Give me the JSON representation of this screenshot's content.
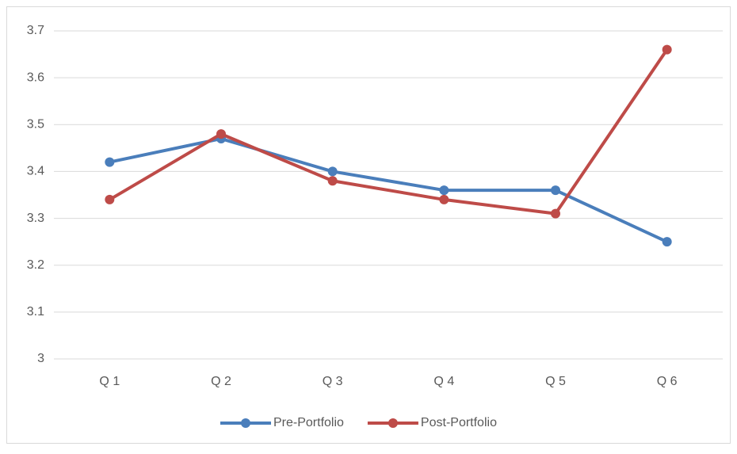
{
  "chart_data": {
    "type": "line",
    "categories": [
      "Q 1",
      "Q 2",
      "Q 3",
      "Q 4",
      "Q 5",
      "Q 6"
    ],
    "series": [
      {
        "name": "Pre-Portfolio",
        "color": "#4a7ebb",
        "values": [
          3.42,
          3.47,
          3.4,
          3.36,
          3.36,
          3.25
        ]
      },
      {
        "name": "Post-Portfolio",
        "color": "#be4b48",
        "values": [
          3.34,
          3.48,
          3.38,
          3.34,
          3.31,
          3.66
        ]
      }
    ],
    "ylim": [
      3,
      3.7
    ],
    "yticks": [
      3,
      3.1,
      3.2,
      3.3,
      3.4,
      3.5,
      3.6,
      3.7
    ],
    "grid": true,
    "legend": "bottom"
  }
}
